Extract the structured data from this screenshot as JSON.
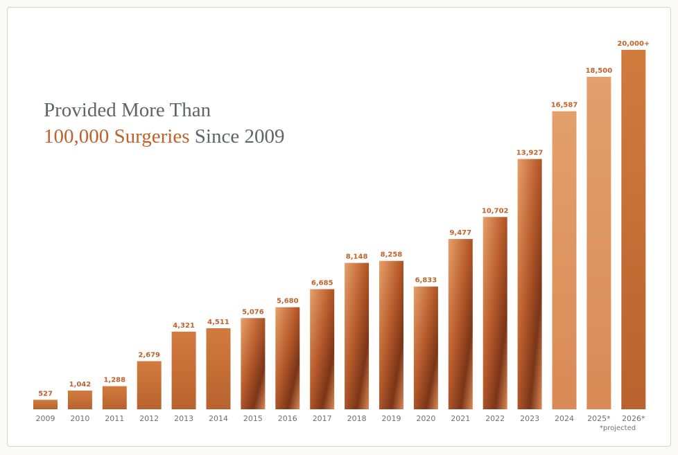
{
  "headline": {
    "line1": "Provided More Than",
    "highlight": "100,000 Surgeries",
    "rest": "Since 2009"
  },
  "chart_data": {
    "type": "bar",
    "title": "Provided More Than 100,000 Surgeries Since 2009",
    "categories": [
      "2009",
      "2010",
      "2011",
      "2012",
      "2013",
      "2014",
      "2015",
      "2016",
      "2017",
      "2018",
      "2019",
      "2020",
      "2021",
      "2022",
      "2023",
      "2024",
      "2025*",
      "2026*"
    ],
    "values": [
      527,
      1042,
      1288,
      2679,
      4321,
      4511,
      5076,
      5680,
      6685,
      8148,
      8258,
      6833,
      9477,
      10702,
      13927,
      16587,
      18500,
      20000
    ],
    "value_labels": [
      "527",
      "1,042",
      "1,288",
      "2,679",
      "4,321",
      "4,511",
      "5,076",
      "5,680",
      "6,685",
      "8,148",
      "8,258",
      "6,833",
      "9,477",
      "10,702",
      "13,927",
      "16,587",
      "18,500",
      "20,000+"
    ],
    "footnote": "*projected",
    "xlabel": "",
    "ylabel": "",
    "ylim": [
      0,
      20000
    ],
    "grid": false,
    "colors": {
      "bar": "#c7743c",
      "bar_dark": "#a85428",
      "photo_warm": "#e39a62",
      "label": "#c0612a"
    }
  }
}
